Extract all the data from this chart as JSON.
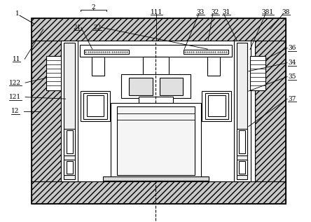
{
  "bg_color": "#ffffff",
  "line_color": "#000000",
  "figsize": [
    4.44,
    3.17
  ],
  "dpi": 100
}
